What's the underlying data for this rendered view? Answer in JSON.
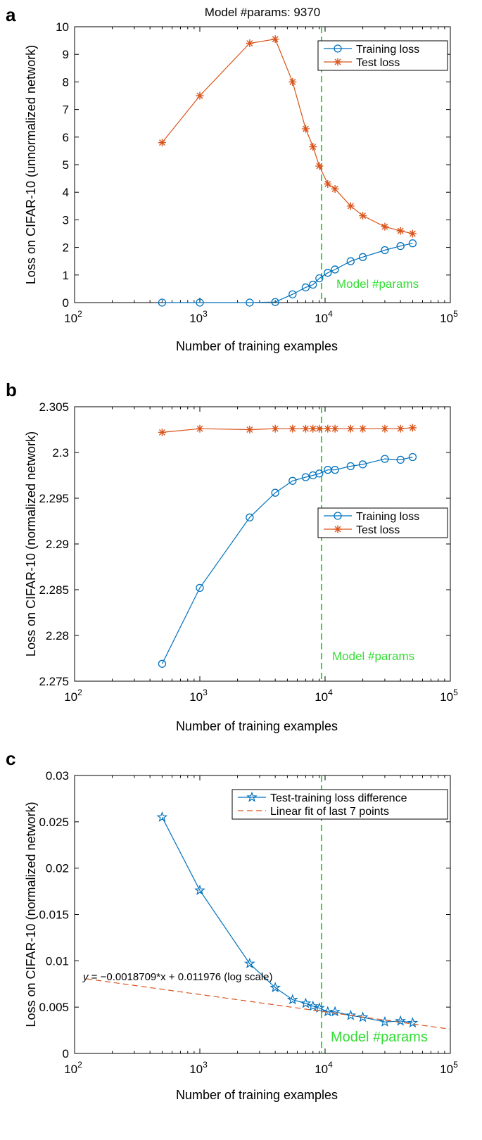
{
  "colors": {
    "training": "#0072bd",
    "test": "#d95319",
    "vline": "#33dd33",
    "fit": "#d95319"
  },
  "chart_data": [
    {
      "type": "line",
      "panel_label": "a",
      "title": "Model #params: 9370",
      "xlabel": "Number of training examples",
      "ylabel": "Loss on CIFAR-10 (unnormalized network)",
      "xscale": "log",
      "xlim": [
        100,
        100000
      ],
      "ylim": [
        0,
        10
      ],
      "x_ticks": [
        100,
        1000,
        10000,
        100000
      ],
      "x_tick_exponents": [
        "2",
        "3",
        "4",
        "5"
      ],
      "y_ticks": [
        0,
        1,
        2,
        3,
        4,
        5,
        6,
        7,
        8,
        9,
        10
      ],
      "y_tick_labels": [
        "0",
        "1",
        "2",
        "3",
        "4",
        "5",
        "6",
        "7",
        "8",
        "9",
        "10"
      ],
      "vline": {
        "x": 9370,
        "label": "Model #params"
      },
      "legend_position": "top-right",
      "series": [
        {
          "name": "Training loss",
          "marker": "circle",
          "x": [
            500,
            1000,
            2500,
            4000,
            5500,
            7000,
            8000,
            9000,
            10500,
            12000,
            16000,
            20000,
            30000,
            40000,
            50000
          ],
          "y": [
            0,
            0,
            0,
            0.02,
            0.3,
            0.55,
            0.65,
            0.88,
            1.08,
            1.2,
            1.5,
            1.65,
            1.9,
            2.05,
            2.15
          ]
        },
        {
          "name": "Test loss",
          "marker": "star",
          "x": [
            500,
            1000,
            2500,
            4000,
            5500,
            7000,
            8000,
            9000,
            10500,
            12000,
            16000,
            20000,
            30000,
            40000,
            50000
          ],
          "y": [
            5.8,
            7.5,
            9.4,
            9.55,
            8.0,
            6.3,
            5.65,
            4.95,
            4.3,
            4.12,
            3.5,
            3.15,
            2.75,
            2.6,
            2.5
          ]
        }
      ]
    },
    {
      "type": "line",
      "panel_label": "b",
      "xlabel": "Number of training examples",
      "ylabel": "Loss on CIFAR-10 (normalized network)",
      "xscale": "log",
      "xlim": [
        100,
        100000
      ],
      "ylim": [
        2.275,
        2.305
      ],
      "x_ticks": [
        100,
        1000,
        10000,
        100000
      ],
      "x_tick_exponents": [
        "2",
        "3",
        "4",
        "5"
      ],
      "y_ticks": [
        2.275,
        2.28,
        2.285,
        2.29,
        2.295,
        2.3,
        2.305
      ],
      "y_tick_labels": [
        "2.275",
        "2.28",
        "2.285",
        "2.29",
        "2.295",
        "2.3",
        "2.305"
      ],
      "vline": {
        "x": 9370,
        "label": "Model #params"
      },
      "legend_position": "middle-right",
      "series": [
        {
          "name": "Training loss",
          "marker": "circle",
          "x": [
            500,
            1000,
            2500,
            4000,
            5500,
            7000,
            8000,
            9000,
            10500,
            12000,
            16000,
            20000,
            30000,
            40000,
            50000
          ],
          "y": [
            2.2769,
            2.2852,
            2.2929,
            2.2956,
            2.2969,
            2.2973,
            2.2975,
            2.2977,
            2.2981,
            2.2981,
            2.2985,
            2.2987,
            2.2993,
            2.2992,
            2.2995
          ]
        },
        {
          "name": "Test loss",
          "marker": "star",
          "x": [
            500,
            1000,
            2500,
            4000,
            5500,
            7000,
            8000,
            9000,
            10500,
            12000,
            16000,
            20000,
            30000,
            40000,
            50000
          ],
          "y": [
            2.3022,
            2.3026,
            2.3025,
            2.3026,
            2.3026,
            2.3026,
            2.3026,
            2.3026,
            2.3026,
            2.3026,
            2.3026,
            2.3026,
            2.3026,
            2.3026,
            2.3027
          ]
        }
      ]
    },
    {
      "type": "line",
      "panel_label": "c",
      "xlabel": "Number of training examples",
      "ylabel": "Loss on CIFAR-10 (normalized network)",
      "xscale": "log",
      "xlim": [
        100,
        100000
      ],
      "ylim": [
        0,
        0.03
      ],
      "x_ticks": [
        100,
        1000,
        10000,
        100000
      ],
      "x_tick_exponents": [
        "2",
        "3",
        "4",
        "5"
      ],
      "y_ticks": [
        0,
        0.005,
        0.01,
        0.015,
        0.02,
        0.025,
        0.03
      ],
      "y_tick_labels": [
        "0",
        "0.005",
        "0.01",
        "0.015",
        "0.02",
        "0.025",
        "0.03"
      ],
      "vline": {
        "x": 9370,
        "label": "Model #params"
      },
      "legend_position": "top-right",
      "annotation": {
        "y_prefix": "y",
        "equation": " = −0.0018709*x + 0.011976 (log scale)"
      },
      "series": [
        {
          "name": "Test-training loss difference",
          "marker": "pentagram",
          "x": [
            500,
            1000,
            2500,
            4000,
            5500,
            7000,
            8000,
            9000,
            10500,
            12000,
            16000,
            20000,
            30000,
            40000,
            50000
          ],
          "y": [
            0.0255,
            0.0176,
            0.0097,
            0.0071,
            0.0058,
            0.0054,
            0.0051,
            0.0049,
            0.0045,
            0.0045,
            0.0041,
            0.0039,
            0.0034,
            0.0035,
            0.0033
          ]
        },
        {
          "name": "Linear fit of last 7 points",
          "style": "dashed",
          "fit": {
            "slope": -0.0018709,
            "intercept": 0.011976,
            "log_base": 10
          }
        }
      ]
    }
  ]
}
